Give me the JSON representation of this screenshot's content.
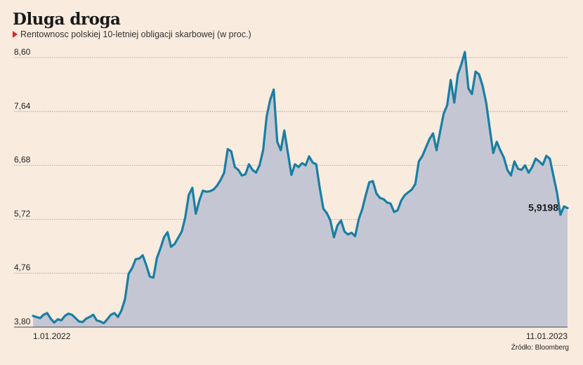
{
  "header": {
    "title": "Dluga droga",
    "subtitle": "Rentownosc polskiej 10-letniej obligacji skarbowej (w proc.)"
  },
  "footer": {
    "source": "Źródło: Bloomberg"
  },
  "colors": {
    "line": "#1a7ea3",
    "area": "#c4c7d3",
    "background": "#f9ebde",
    "marker": "#e3232b"
  },
  "chart_data": {
    "type": "area",
    "title": "Dluga droga",
    "subtitle": "Rentownosc polskiej 10-letniej obligacji skarbowej (w proc.)",
    "xlabel": "",
    "ylabel": "",
    "ylim": [
      3.8,
      8.6
    ],
    "yticks": [
      "3,80",
      "4,76",
      "5,72",
      "6,68",
      "7,64",
      "8,60"
    ],
    "x_start_label": "1.01.2022",
    "x_end_label": "11.01.2023",
    "last_value_label": "5,9198",
    "grid": true,
    "series": [
      {
        "values": [
          4.0,
          3.98,
          3.96,
          4.02,
          4.05,
          3.95,
          3.88,
          3.94,
          3.92,
          4.0,
          4.04,
          4.02,
          3.96,
          3.9,
          3.89,
          3.95,
          3.98,
          4.02,
          3.92,
          3.9,
          3.87,
          3.94,
          4.02,
          4.05,
          3.98,
          4.1,
          4.3,
          4.75,
          4.85,
          5.01,
          5.02,
          5.08,
          4.9,
          4.7,
          4.68,
          5.03,
          5.2,
          5.4,
          5.49,
          5.23,
          5.28,
          5.39,
          5.5,
          5.75,
          6.15,
          6.28,
          5.82,
          6.06,
          6.23,
          6.21,
          6.22,
          6.25,
          6.32,
          6.42,
          6.55,
          6.97,
          6.93,
          6.65,
          6.6,
          6.5,
          6.52,
          6.7,
          6.6,
          6.55,
          6.68,
          6.95,
          7.55,
          7.85,
          8.03,
          7.1,
          6.95,
          7.3,
          6.9,
          6.51,
          6.7,
          6.65,
          6.72,
          6.68,
          6.84,
          6.73,
          6.7,
          6.28,
          5.91,
          5.83,
          5.7,
          5.4,
          5.61,
          5.7,
          5.5,
          5.45,
          5.48,
          5.42,
          5.72,
          5.9,
          6.15,
          6.38,
          6.4,
          6.18,
          6.1,
          6.08,
          6.02,
          6.0,
          5.85,
          5.88,
          6.05,
          6.15,
          6.2,
          6.25,
          6.35,
          6.75,
          6.85,
          7.0,
          7.15,
          7.25,
          6.95,
          7.28,
          7.6,
          7.75,
          8.2,
          7.8,
          8.3,
          8.48,
          8.7,
          8.05,
          7.95,
          8.35,
          8.3,
          8.1,
          7.8,
          7.35,
          6.9,
          7.1,
          6.95,
          6.82,
          6.6,
          6.5,
          6.75,
          6.62,
          6.6,
          6.68,
          6.55,
          6.65,
          6.8,
          6.75,
          6.69,
          6.85,
          6.8,
          6.5,
          6.2,
          5.8,
          5.95,
          5.92
        ]
      }
    ]
  }
}
